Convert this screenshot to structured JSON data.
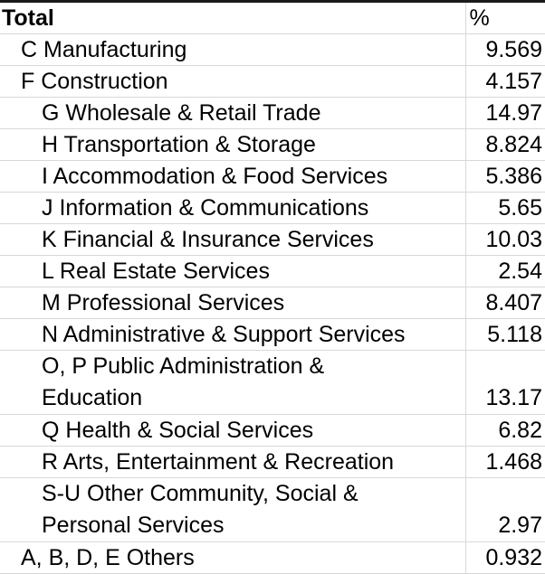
{
  "table": {
    "header": {
      "label": "Total",
      "value": "%"
    },
    "rows": [
      {
        "label_lines": [
          "C Manufacturing"
        ],
        "value": "9.569",
        "indent": 1
      },
      {
        "label_lines": [
          "F Construction"
        ],
        "value": "4.157",
        "indent": 1
      },
      {
        "label_lines": [
          "G Wholesale & Retail Trade"
        ],
        "value": "14.97",
        "indent": 2
      },
      {
        "label_lines": [
          "H Transportation & Storage"
        ],
        "value": "8.824",
        "indent": 2
      },
      {
        "label_lines": [
          "I Accommodation & Food Services"
        ],
        "value": "5.386",
        "indent": 2
      },
      {
        "label_lines": [
          "J Information & Communications"
        ],
        "value": "5.65",
        "indent": 2
      },
      {
        "label_lines": [
          "K Financial & Insurance Services"
        ],
        "value": "10.03",
        "indent": 2
      },
      {
        "label_lines": [
          "L Real Estate Services"
        ],
        "value": "2.54",
        "indent": 2
      },
      {
        "label_lines": [
          "M Professional Services"
        ],
        "value": "8.407",
        "indent": 2
      },
      {
        "label_lines": [
          "N Administrative & Support Services"
        ],
        "value": "5.118",
        "indent": 2
      },
      {
        "label_lines": [
          "O, P Public Administration &",
          "Education"
        ],
        "value": "13.17",
        "indent": 2
      },
      {
        "label_lines": [
          "Q Health & Social Services"
        ],
        "value": "6.82",
        "indent": 2
      },
      {
        "label_lines": [
          "R Arts, Entertainment & Recreation"
        ],
        "value": "1.468",
        "indent": 2
      },
      {
        "label_lines": [
          "S-U Other Community, Social &",
          "Personal Services"
        ],
        "value": "2.97",
        "indent": 2
      },
      {
        "label_lines": [
          "A, B, D, E Others"
        ],
        "value": "0.932",
        "indent": 1
      }
    ]
  }
}
